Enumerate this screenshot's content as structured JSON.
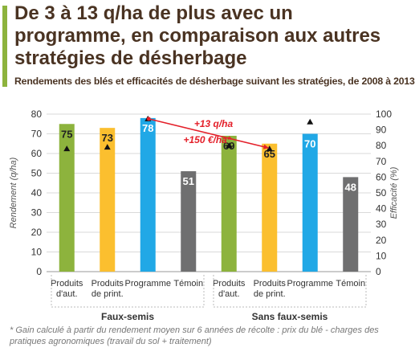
{
  "header": {
    "title": "De 3 à 13 q/ha de plus avec un programme, en comparaison aux autres stratégies de désherbage",
    "subtitle": "Rendements des blés et efficacités de désherbage suivant les stratégies, de 2008 à 2013"
  },
  "footnote": "* Gain calculé à partir du rendement moyen sur 6 années de récolte : prix du blé - charges des pratiques agronomiques (travail du sol + traitement)",
  "colors": {
    "accent": "#8db33d",
    "green": "#8db33d",
    "yellow": "#fbbf2f",
    "blue": "#21a8e6",
    "gray": "#6f6f70",
    "annotation": "#e4202a",
    "title_text": "#4a3322"
  },
  "chart_data": {
    "type": "bar",
    "ylabel": "Rendement (q/ha)",
    "ylim": [
      0,
      80
    ],
    "yticks": [
      "0",
      "10",
      "20",
      "30",
      "40",
      "50",
      "60",
      "70",
      "80"
    ],
    "y2label": "Efficacité (%)",
    "y2lim": [
      0,
      100
    ],
    "y2ticks": [
      "0",
      "10",
      "20",
      "30",
      "40",
      "50",
      "60",
      "70",
      "80",
      "90",
      "100"
    ],
    "grid": true,
    "categories": [
      [
        "Produits",
        "d'aut."
      ],
      [
        "Produits",
        "de print."
      ],
      [
        "Programme"
      ],
      [
        "Témoin"
      ],
      [
        "Produits",
        "d'aut."
      ],
      [
        "Produits",
        "de print."
      ],
      [
        "Programme"
      ],
      [
        "Témoin"
      ]
    ],
    "groups": [
      {
        "label": "Faux-semis",
        "start": 0,
        "end": 3
      },
      {
        "label": "Sans faux-semis",
        "start": 4,
        "end": 7
      }
    ],
    "series": [
      {
        "values": [
          75,
          73,
          78,
          51,
          69,
          65,
          70,
          48
        ],
        "labels": [
          "75",
          "73",
          "78",
          "51",
          "69",
          "65",
          "70",
          "48"
        ],
        "colors": [
          "#8db33d",
          "#fbbf2f",
          "#21a8e6",
          "#6f6f70",
          "#8db33d",
          "#fbbf2f",
          "#21a8e6",
          "#6f6f70"
        ]
      },
      {
        "axis": "right",
        "marker": "triangle",
        "values": [
          78,
          79,
          97,
          null,
          80,
          78,
          95,
          null
        ]
      }
    ],
    "annotations": [
      {
        "text": "+13 q/ha",
        "from": 2,
        "to": 5
      },
      {
        "text": "+150 €/ha*",
        "from": 2,
        "to": 5
      }
    ]
  }
}
